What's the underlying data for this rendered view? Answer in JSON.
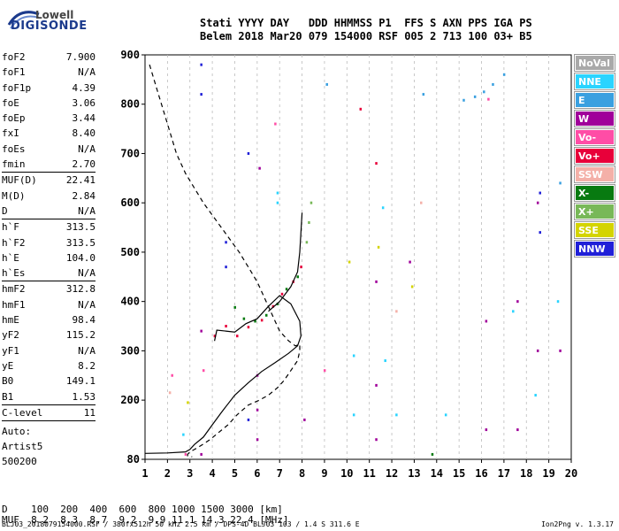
{
  "logo": {
    "top": "Lowell",
    "bottom": "DIGISONDE"
  },
  "header": {
    "line1": "Stati YYYY DAY   DDD HHMMSS P1  FFS S AXN PPS IGA PS",
    "line2": "Belem 2018 Mar20 079 154000 RSF 005 2 713 100 03+ B5"
  },
  "params": [
    {
      "name": "foF2",
      "value": "7.900"
    },
    {
      "name": "foF1",
      "value": "N/A"
    },
    {
      "name": "foF1p",
      "value": "4.39"
    },
    {
      "name": "foE",
      "value": "3.06"
    },
    {
      "name": "foEp",
      "value": "3.44"
    },
    {
      "name": "fxI",
      "value": "8.40"
    },
    {
      "name": "foEs",
      "value": "N/A"
    },
    {
      "name": "fmin",
      "value": "2.70"
    },
    {
      "name": "MUF(D)",
      "value": "22.41",
      "sep": true
    },
    {
      "name": "M(D)",
      "value": "2.84"
    },
    {
      "name": "D",
      "value": "N/A"
    },
    {
      "name": "h`F",
      "value": "313.5",
      "sep": true
    },
    {
      "name": "h`F2",
      "value": "313.5"
    },
    {
      "name": "h`E",
      "value": "104.0"
    },
    {
      "name": "h`Es",
      "value": "N/A"
    },
    {
      "name": "hmF2",
      "value": "312.8",
      "sep": true
    },
    {
      "name": "hmF1",
      "value": "N/A"
    },
    {
      "name": "hmE",
      "value": "98.4"
    },
    {
      "name": "yF2",
      "value": "115.2"
    },
    {
      "name": "yF1",
      "value": "N/A"
    },
    {
      "name": "yE",
      "value": "8.2"
    },
    {
      "name": "B0",
      "value": "149.1"
    },
    {
      "name": "B1",
      "value": "1.53"
    },
    {
      "name": "C-level",
      "value": "11",
      "sep": true
    }
  ],
  "auto": {
    "label": "Auto:",
    "artist": "Artist5",
    "code": "500200"
  },
  "legend": [
    {
      "label": "NoVal",
      "color": "#a9a9a9"
    },
    {
      "label": "NNE",
      "color": "#2ad4ff"
    },
    {
      "label": "E",
      "color": "#3aa0e0"
    },
    {
      "label": "W",
      "color": "#a0009a"
    },
    {
      "label": "Vo-",
      "color": "#ff4da6"
    },
    {
      "label": "Vo+",
      "color": "#e8003a"
    },
    {
      "label": "SSW",
      "color": "#f4b0a8"
    },
    {
      "label": "X-",
      "color": "#087a10"
    },
    {
      "label": "X+",
      "color": "#78b858"
    },
    {
      "label": "SSE",
      "color": "#d4d400"
    },
    {
      "label": "NNW",
      "color": "#2020d8"
    }
  ],
  "muf_table": {
    "d_label": "D",
    "d_values": [
      "100",
      "200",
      "400",
      "600",
      "800",
      "1000",
      "1500",
      "3000"
    ],
    "d_unit": "[km]",
    "muf_label": "MUF",
    "muf_values": [
      "8.2",
      "8.3",
      "8.7",
      "9.2",
      "9.9",
      "11.1",
      "14.3",
      "22.4"
    ],
    "muf_unit": "[MHz]"
  },
  "footer": {
    "left": "BLJ03_2018079154000.RSF / 380fx512h 50 kHz 2.5 km / DPS-4D BLJ03 103 / 1.4 S 311.6 E",
    "right": "Ion2Png v. 1.3.17"
  },
  "chart_data": {
    "type": "scatter",
    "xlim": [
      1,
      20
    ],
    "ylim": [
      80,
      900
    ],
    "xticks": [
      1,
      2,
      3,
      4,
      5,
      6,
      7,
      8,
      9,
      10,
      11,
      12,
      13,
      14,
      15,
      16,
      17,
      18,
      19,
      20
    ],
    "yticks": [
      80,
      200,
      300,
      400,
      500,
      600,
      700,
      800,
      900
    ],
    "grid": "vertical dashed",
    "series": [
      {
        "name": "W",
        "color": "#a0009a",
        "points": [
          [
            3.5,
            90
          ],
          [
            3.5,
            340
          ],
          [
            6.0,
            120
          ],
          [
            6.0,
            180
          ],
          [
            6.0,
            250
          ],
          [
            6.1,
            670
          ],
          [
            8.1,
            160
          ],
          [
            11.3,
            120
          ],
          [
            11.3,
            230
          ],
          [
            11.3,
            440
          ],
          [
            12.8,
            480
          ],
          [
            16.2,
            140
          ],
          [
            16.2,
            360
          ],
          [
            18.5,
            300
          ],
          [
            18.5,
            600
          ],
          [
            17.6,
            140
          ],
          [
            17.6,
            400
          ],
          [
            19.5,
            300
          ]
        ]
      },
      {
        "name": "NNW",
        "color": "#2020d8",
        "points": [
          [
            3.5,
            820
          ],
          [
            3.5,
            880
          ],
          [
            4.6,
            470
          ],
          [
            4.6,
            520
          ],
          [
            5.6,
            160
          ],
          [
            5.6,
            700
          ],
          [
            18.6,
            620
          ],
          [
            18.6,
            540
          ]
        ]
      },
      {
        "name": "NNE",
        "color": "#2ad4ff",
        "points": [
          [
            2.7,
            130
          ],
          [
            6.9,
            600
          ],
          [
            6.9,
            620
          ],
          [
            10.3,
            170
          ],
          [
            10.3,
            290
          ],
          [
            11.6,
            590
          ],
          [
            11.7,
            280
          ],
          [
            12.2,
            170
          ],
          [
            14.4,
            170
          ],
          [
            17.4,
            380
          ],
          [
            18.4,
            210
          ],
          [
            19.4,
            400
          ]
        ]
      },
      {
        "name": "E",
        "color": "#3aa0e0",
        "points": [
          [
            15.2,
            808
          ],
          [
            15.7,
            815
          ],
          [
            16.1,
            825
          ],
          [
            16.5,
            840
          ],
          [
            17.0,
            860
          ],
          [
            13.4,
            820
          ],
          [
            9.1,
            840
          ],
          [
            19.5,
            640
          ]
        ]
      },
      {
        "name": "Vo+",
        "color": "#e8003a",
        "points": [
          [
            4.1,
            330
          ],
          [
            4.6,
            350
          ],
          [
            5.1,
            330
          ],
          [
            5.6,
            348
          ],
          [
            6.2,
            362
          ],
          [
            6.7,
            390
          ],
          [
            7.1,
            415
          ],
          [
            7.6,
            440
          ],
          [
            7.95,
            470
          ],
          [
            10.6,
            790
          ],
          [
            11.3,
            680
          ]
        ]
      },
      {
        "name": "X-",
        "color": "#087a10",
        "points": [
          [
            5.0,
            388
          ],
          [
            5.4,
            365
          ],
          [
            5.9,
            360
          ],
          [
            6.4,
            372
          ],
          [
            6.9,
            395
          ],
          [
            7.3,
            425
          ],
          [
            7.8,
            450
          ],
          [
            13.8,
            90
          ]
        ]
      },
      {
        "name": "X+",
        "color": "#78b858",
        "points": [
          [
            8.2,
            520
          ],
          [
            8.3,
            560
          ],
          [
            8.4,
            600
          ]
        ]
      },
      {
        "name": "Vo-",
        "color": "#ff4da6",
        "points": [
          [
            2.8,
            90
          ],
          [
            2.2,
            250
          ],
          [
            3.6,
            260
          ],
          [
            6.8,
            760
          ],
          [
            9.0,
            260
          ],
          [
            16.3,
            810
          ]
        ]
      },
      {
        "name": "SSE",
        "color": "#d4d400",
        "points": [
          [
            10.1,
            480
          ],
          [
            11.4,
            510
          ],
          [
            12.9,
            430
          ],
          [
            2.9,
            195
          ]
        ]
      },
      {
        "name": "SSW",
        "color": "#f4b0a8",
        "points": [
          [
            2.1,
            215
          ],
          [
            12.2,
            380
          ],
          [
            13.3,
            600
          ]
        ]
      }
    ],
    "curves": [
      {
        "name": "electron density profile (dashed)",
        "x": [
          1.2,
          1.6,
          2.0,
          2.4,
          2.8,
          3.2,
          3.6,
          4.0,
          4.4,
          4.8,
          5.2,
          5.6,
          6.0,
          6.4,
          6.7,
          7.0,
          7.4,
          7.7,
          7.9,
          7.9,
          7.8,
          7.5,
          7.2,
          6.9,
          6.5,
          6.1,
          5.6,
          5.1,
          4.7,
          4.3,
          3.9,
          3.5,
          3.2,
          3.0,
          2.9,
          2.9,
          3.1
        ],
        "y": [
          880,
          820,
          760,
          700,
          660,
          630,
          600,
          575,
          550,
          525,
          500,
          470,
          440,
          400,
          370,
          340,
          320,
          310,
          313,
          300,
          280,
          260,
          240,
          225,
          210,
          200,
          190,
          170,
          150,
          135,
          120,
          108,
          100,
          95,
          90,
          87,
          85
        ],
        "dashed": true
      },
      {
        "name": "virtual height trace",
        "x": [
          1.0,
          2.0,
          2.8,
          3.0,
          3.2,
          3.6,
          4.0,
          4.4,
          5.0,
          5.6,
          6.2,
          6.8,
          7.4,
          7.8,
          7.95,
          7.9,
          7.5,
          7.0,
          6.5,
          6.0,
          5.5,
          5.0,
          4.6,
          4.2,
          4.1
        ],
        "y": [
          92,
          93,
          95,
          100,
          110,
          125,
          150,
          175,
          210,
          235,
          258,
          276,
          295,
          310,
          330,
          360,
          395,
          412,
          390,
          365,
          355,
          338,
          340,
          342,
          320
        ]
      },
      {
        "name": "F2 upper trace",
        "x": [
          6.5,
          7.0,
          7.5,
          7.8,
          7.9,
          7.95,
          8.0
        ],
        "y": [
          380,
          400,
          430,
          460,
          500,
          540,
          580
        ]
      }
    ]
  }
}
